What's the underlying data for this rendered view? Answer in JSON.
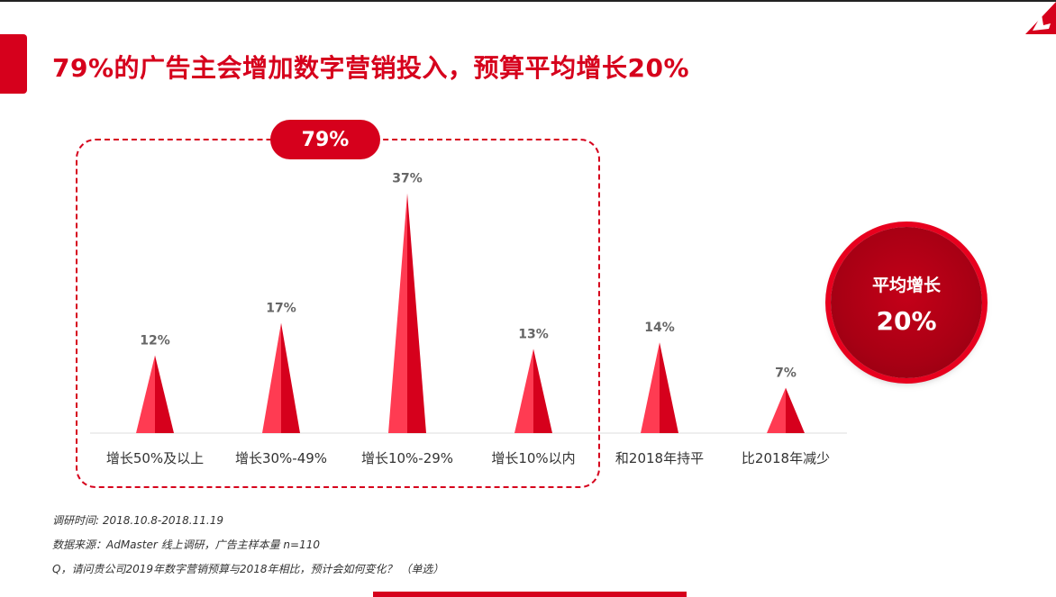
{
  "title": "79%的广告主会增加数字营销投入，预算平均增长20%",
  "group_label": "79%",
  "average": {
    "label": "平均增长",
    "value": "20%"
  },
  "chart_data": {
    "type": "bar",
    "categories": [
      "增长50%及以上",
      "增长30%-49%",
      "增长10%-29%",
      "增长10%以内",
      "和2018年持平",
      "比2018年减少"
    ],
    "values": [
      12,
      17,
      37,
      13,
      14,
      7
    ],
    "value_labels": [
      "12%",
      "17%",
      "37%",
      "13%",
      "14%",
      "7%"
    ],
    "unit": "%",
    "title": "",
    "xlabel": "",
    "ylabel": "",
    "grid": false,
    "legend": "none",
    "bar_shape": "cone",
    "colors": {
      "bar_light": "#ff3b52",
      "bar_dark": "#d6001c"
    }
  },
  "notes": [
    "调研时间: 2018.10.8-2018.11.19",
    "数据来源：AdMaster  线上调研，广告主样本量 n=110",
    "Q，请问贵公司2019年数字营销预算与2018年相比，预计会如何变化？ （单选）"
  ],
  "colors": {
    "accent": "#d6001c"
  },
  "icons": {
    "logo": "brand-logo-icon"
  }
}
